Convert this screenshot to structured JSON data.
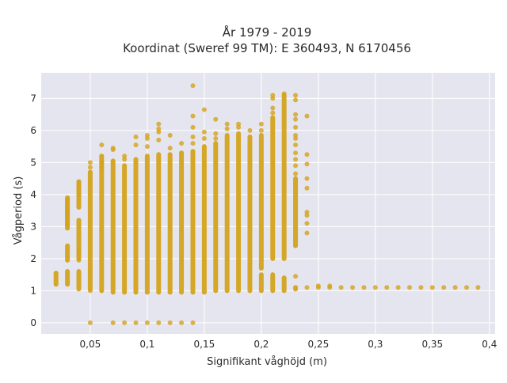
{
  "chart_data": {
    "type": "scatter",
    "title": [
      "År 1979 - 2019",
      "Koordinat (Sweref 99 TM): E 360493, N 6170456"
    ],
    "xlabel": "Signifikant våghöjd (m)",
    "ylabel": "Vågperiod (s)",
    "xlim": [
      0.007,
      0.405
    ],
    "ylim": [
      -0.35,
      7.8
    ],
    "x_ticks": [
      0.05,
      0.1,
      0.15,
      0.2,
      0.25,
      0.3,
      0.35,
      0.4
    ],
    "x_tick_labels": [
      "0,05",
      "0,1",
      "0,15",
      "0,2",
      "0,25",
      "0,3",
      "0,35",
      "0,4"
    ],
    "y_ticks": [
      0,
      1,
      2,
      3,
      4,
      5,
      6,
      7
    ],
    "y_tick_labels": [
      "0",
      "1",
      "2",
      "3",
      "4",
      "5",
      "6",
      "7"
    ],
    "grid": true,
    "colors": {
      "marker": "#d4a31c",
      "plot_bg": "#e5e5ef",
      "grid": "#ffffff",
      "page_bg": "#ffffff"
    },
    "columns": [
      {
        "x": 0.02,
        "segments": [
          [
            1.2,
            1.55
          ]
        ]
      },
      {
        "x": 0.03,
        "segments": [
          [
            1.2,
            1.6
          ],
          [
            1.95,
            2.4
          ],
          [
            2.95,
            3.9
          ]
        ],
        "points": [
          3.05,
          3.15,
          3.25,
          3.35,
          3.45,
          3.55,
          3.65,
          3.75,
          3.85
        ]
      },
      {
        "x": 0.04,
        "segments": [
          [
            1.05,
            1.6
          ],
          [
            2.0,
            3.2
          ],
          [
            3.6,
            4.4
          ]
        ],
        "points": [
          1.95,
          2.15,
          2.25,
          4.0,
          4.15,
          4.25,
          4.4
        ]
      },
      {
        "x": 0.05,
        "segments": [
          [
            1.05,
            4.7
          ]
        ],
        "points": [
          0.0,
          1.0,
          4.85,
          5.0
        ]
      },
      {
        "x": 0.06,
        "segments": [
          [
            1.0,
            5.2
          ]
        ],
        "points": [
          5.55,
          5.0,
          4.85
        ]
      },
      {
        "x": 0.07,
        "segments": [
          [
            0.95,
            5.05
          ]
        ],
        "points": [
          0.0,
          5.4,
          5.45
        ]
      },
      {
        "x": 0.08,
        "segments": [
          [
            0.95,
            4.9
          ]
        ],
        "points": [
          0.0,
          5.1,
          5.2
        ]
      },
      {
        "x": 0.09,
        "segments": [
          [
            0.95,
            5.1
          ]
        ],
        "points": [
          0.0,
          5.55,
          5.8
        ]
      },
      {
        "x": 0.1,
        "segments": [
          [
            0.95,
            5.2
          ]
        ],
        "points": [
          0.0,
          5.5,
          5.75,
          5.85
        ]
      },
      {
        "x": 0.11,
        "segments": [
          [
            0.95,
            5.25
          ]
        ],
        "points": [
          0.0,
          5.7,
          5.95,
          6.05,
          6.2
        ]
      },
      {
        "x": 0.12,
        "segments": [
          [
            0.95,
            5.25
          ]
        ],
        "points": [
          0.0,
          5.45,
          5.85
        ]
      },
      {
        "x": 0.13,
        "segments": [
          [
            0.95,
            5.3
          ]
        ],
        "points": [
          0.0,
          5.6
        ]
      },
      {
        "x": 0.14,
        "segments": [
          [
            0.95,
            5.35
          ]
        ],
        "points": [
          0.0,
          5.6,
          5.8,
          6.1,
          6.45,
          7.4
        ]
      },
      {
        "x": 0.15,
        "segments": [
          [
            0.95,
            5.5
          ]
        ],
        "points": [
          5.75,
          5.95,
          6.65
        ]
      },
      {
        "x": 0.16,
        "segments": [
          [
            1.0,
            5.6
          ]
        ],
        "points": [
          5.75,
          5.9,
          6.35
        ]
      },
      {
        "x": 0.17,
        "segments": [
          [
            1.0,
            5.85
          ]
        ],
        "points": [
          6.05,
          6.2
        ]
      },
      {
        "x": 0.18,
        "segments": [
          [
            1.0,
            5.9
          ]
        ],
        "points": [
          6.1,
          6.2
        ]
      },
      {
        "x": 0.19,
        "segments": [
          [
            1.0,
            5.8
          ]
        ],
        "points": [
          6.0
        ]
      },
      {
        "x": 0.2,
        "segments": [
          [
            1.0,
            1.5
          ],
          [
            1.7,
            5.85
          ]
        ],
        "points": [
          6.0,
          6.2
        ]
      },
      {
        "x": 0.21,
        "segments": [
          [
            1.0,
            1.5
          ],
          [
            2.0,
            6.4
          ]
        ],
        "points": [
          6.55,
          6.7,
          7.0,
          7.1
        ]
      },
      {
        "x": 0.22,
        "segments": [
          [
            1.0,
            1.4
          ],
          [
            2.0,
            7.1
          ]
        ],
        "points": [
          7.15
        ]
      },
      {
        "x": 0.23,
        "segments": [
          [
            1.05,
            1.1
          ],
          [
            2.4,
            4.5
          ]
        ],
        "points": [
          1.45,
          4.65,
          4.9,
          5.1,
          5.3,
          5.55,
          5.75,
          5.85,
          6.1,
          6.35,
          6.5,
          6.95,
          7.1
        ]
      },
      {
        "x": 0.24,
        "segments": [],
        "points": [
          1.1,
          2.8,
          3.1,
          3.35,
          3.45,
          4.2,
          4.5,
          4.95,
          5.25,
          6.45
        ]
      },
      {
        "x": 0.25,
        "segments": [],
        "points": [
          1.1,
          1.15
        ]
      },
      {
        "x": 0.26,
        "segments": [],
        "points": [
          1.1,
          1.15
        ]
      },
      {
        "x": 0.27,
        "segments": [],
        "points": [
          1.1
        ]
      },
      {
        "x": 0.28,
        "segments": [],
        "points": [
          1.1
        ]
      },
      {
        "x": 0.29,
        "segments": [],
        "points": [
          1.1
        ]
      },
      {
        "x": 0.3,
        "segments": [],
        "points": [
          1.1
        ]
      },
      {
        "x": 0.31,
        "segments": [],
        "points": [
          1.1
        ]
      },
      {
        "x": 0.32,
        "segments": [],
        "points": [
          1.1
        ]
      },
      {
        "x": 0.33,
        "segments": [],
        "points": [
          1.1
        ]
      },
      {
        "x": 0.34,
        "segments": [],
        "points": [
          1.1
        ]
      },
      {
        "x": 0.35,
        "segments": [],
        "points": [
          1.1
        ]
      },
      {
        "x": 0.36,
        "segments": [],
        "points": [
          1.1
        ]
      },
      {
        "x": 0.37,
        "segments": [],
        "points": [
          1.1
        ]
      },
      {
        "x": 0.38,
        "segments": [],
        "points": [
          1.1
        ]
      },
      {
        "x": 0.39,
        "segments": [],
        "points": [
          1.1
        ]
      }
    ]
  }
}
